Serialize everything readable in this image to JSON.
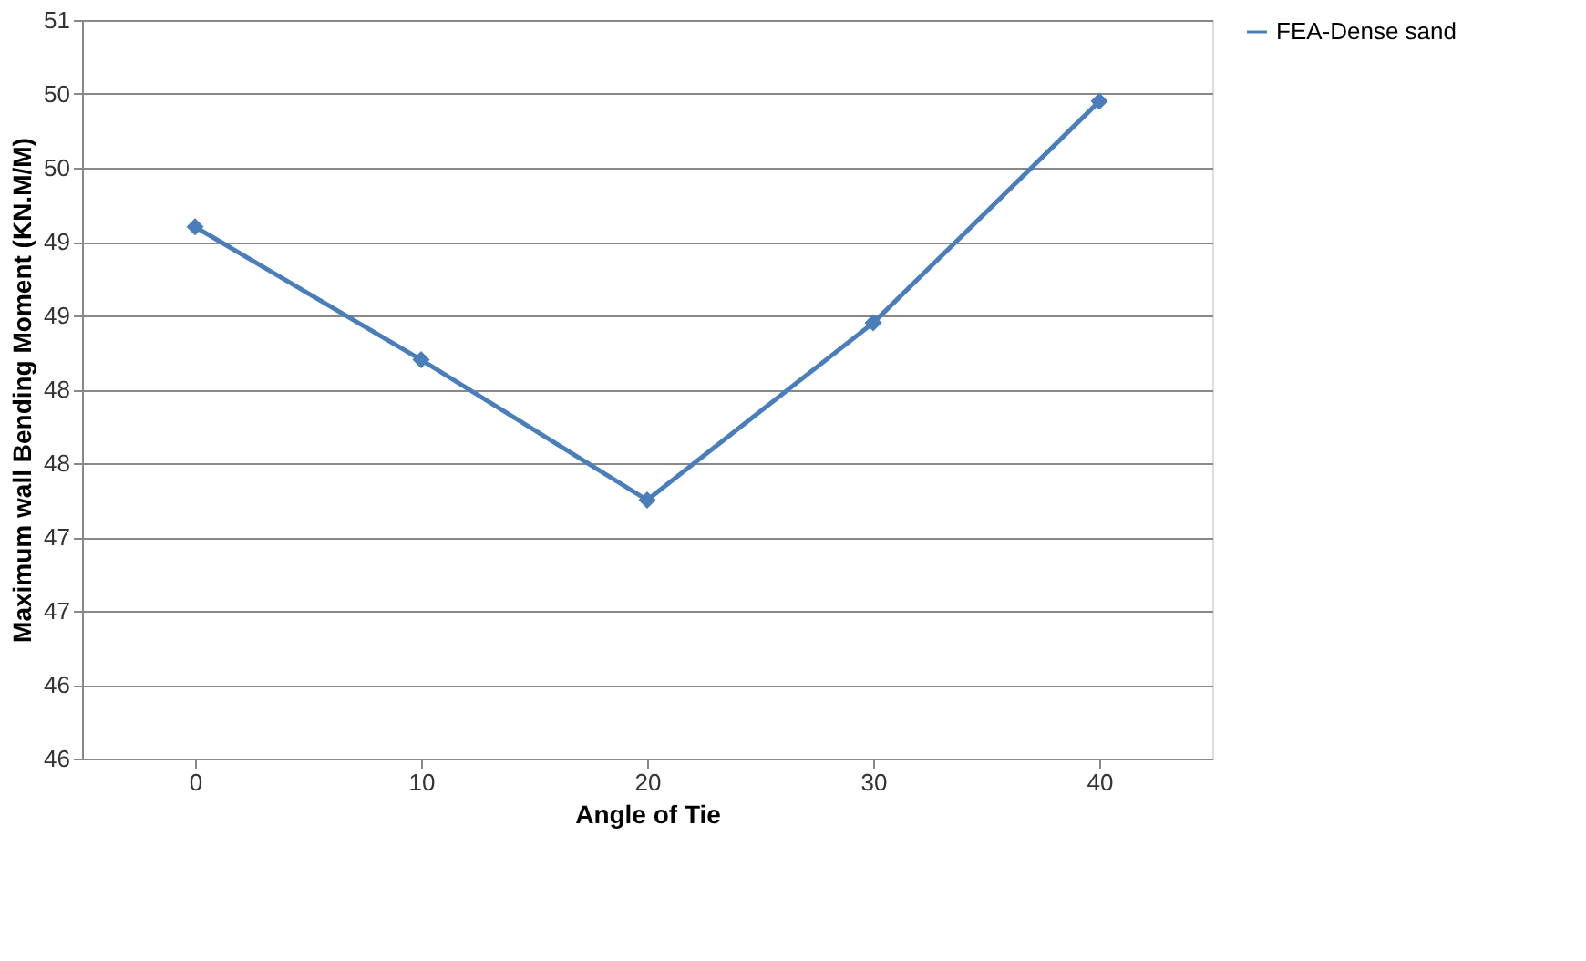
{
  "chart_data": {
    "type": "line",
    "xlabel": "Angle of Tie",
    "ylabel": "Maximum wall Bending Moment (KN.M/M)",
    "categories": [
      "0",
      "10",
      "20",
      "30",
      "40"
    ],
    "series": [
      {
        "name": "FEA-Dense sand",
        "color": "#4a7ebb",
        "values": [
          49.6,
          48.7,
          47.75,
          48.95,
          50.45
        ]
      }
    ],
    "ylim": [
      46,
      51
    ],
    "yticks": [
      46,
      {
        "value": 46.5,
        "label": "46"
      },
      47,
      {
        "value": 47.5,
        "label": "47"
      },
      48,
      {
        "value": 48.5,
        "label": "48"
      },
      49,
      {
        "value": 49.5,
        "label": "49"
      },
      50,
      {
        "value": 50.5,
        "label": "50"
      },
      51
    ],
    "grid": "y",
    "legend": "right",
    "marker": "diamond",
    "line_style": "solid"
  }
}
